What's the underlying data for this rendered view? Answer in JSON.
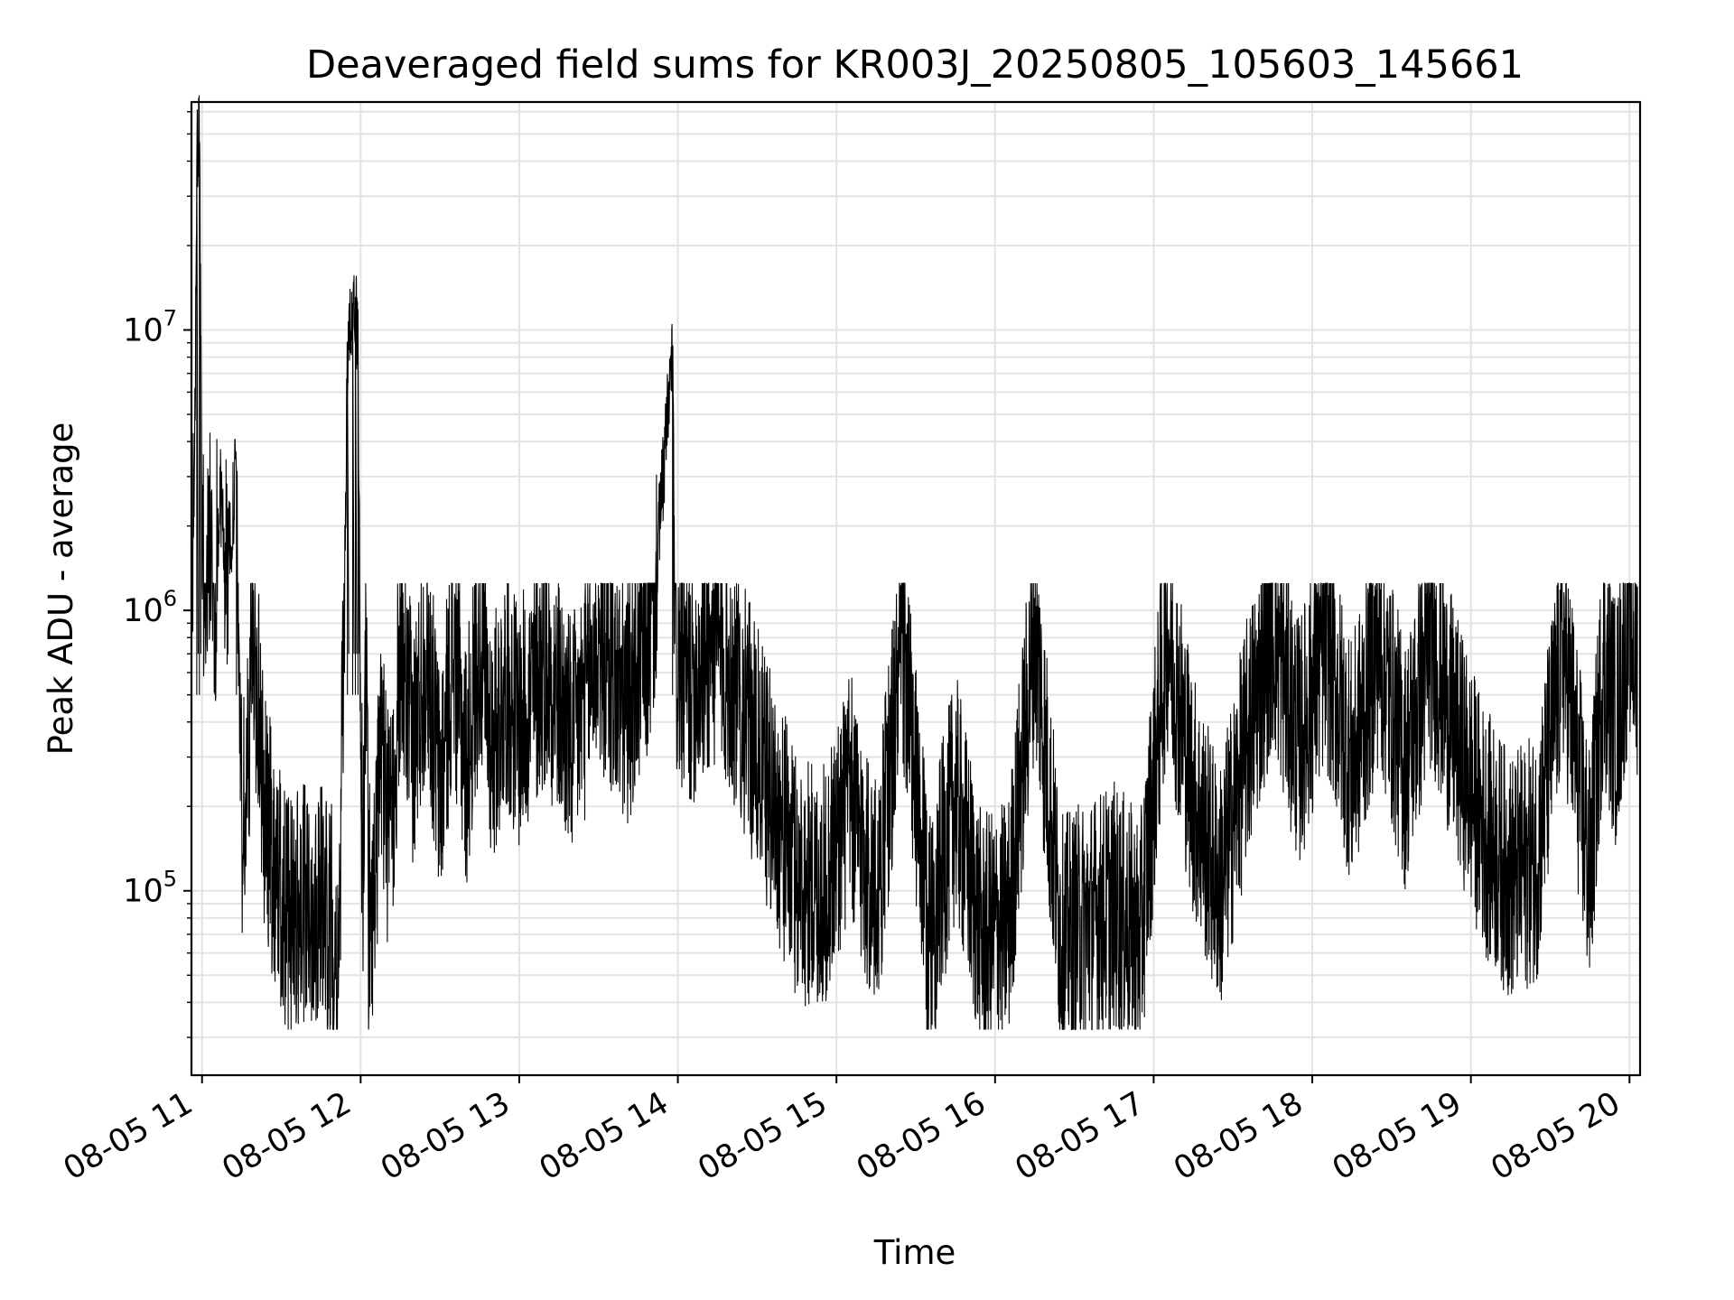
{
  "chart_data": {
    "type": "line",
    "title": "Deaveraged field sums for KR003J_20250805_105603_145661",
    "xlabel": "Time",
    "ylabel": "Peak ADU - average",
    "yscale": "log",
    "xlim": [
      "2025-08-05 10:56",
      "2025-08-05 20:04"
    ],
    "ylim": [
      22000,
      65000000
    ],
    "grid": true,
    "line_color": "#000000",
    "x_ticks": [
      {
        "label": "08-05 11",
        "value": "2025-08-05 11:00"
      },
      {
        "label": "08-05 12",
        "value": "2025-08-05 12:00"
      },
      {
        "label": "08-05 13",
        "value": "2025-08-05 13:00"
      },
      {
        "label": "08-05 14",
        "value": "2025-08-05 14:00"
      },
      {
        "label": "08-05 15",
        "value": "2025-08-05 15:00"
      },
      {
        "label": "08-05 16",
        "value": "2025-08-05 16:00"
      },
      {
        "label": "08-05 17",
        "value": "2025-08-05 17:00"
      },
      {
        "label": "08-05 18",
        "value": "2025-08-05 18:00"
      },
      {
        "label": "08-05 19",
        "value": "2025-08-05 19:00"
      },
      {
        "label": "08-05 20",
        "value": "2025-08-05 20:00"
      }
    ],
    "y_ticks": [
      {
        "base": "10",
        "exp": "5",
        "value": 100000
      },
      {
        "base": "10",
        "exp": "6",
        "value": 1000000
      },
      {
        "base": "10",
        "exp": "7",
        "value": 10000000
      }
    ],
    "series": [
      {
        "x": [
          "10:56",
          "10:57",
          "10:58",
          "10:59",
          "11:00",
          "11:01",
          "11:03",
          "11:05",
          "11:07",
          "11:09",
          "11:11",
          "11:13",
          "11:15",
          "11:17",
          "11:19",
          "11:21",
          "11:24",
          "11:27",
          "11:30",
          "11:33",
          "11:36",
          "11:40",
          "11:44",
          "11:48",
          "11:52",
          "11:55",
          "11:57",
          "11:58",
          "11:59",
          "12:00",
          "12:01",
          "12:02",
          "12:03",
          "12:05",
          "12:08",
          "12:11",
          "12:15",
          "12:20",
          "12:25",
          "12:30",
          "12:35",
          "12:40",
          "12:45",
          "12:50",
          "12:55",
          "13:00",
          "13:10",
          "13:20",
          "13:30",
          "13:40",
          "13:50",
          "13:58",
          "13:59",
          "14:05",
          "14:15",
          "14:25",
          "14:35",
          "14:45",
          "14:55",
          "15:05",
          "15:15",
          "15:25",
          "15:35",
          "15:45",
          "15:55",
          "16:05",
          "16:15",
          "16:25",
          "16:35",
          "16:45",
          "16:55",
          "17:05",
          "17:15",
          "17:25",
          "17:35",
          "17:45",
          "17:55",
          "18:05",
          "18:15",
          "18:25",
          "18:35",
          "18:45",
          "18:55",
          "19:05",
          "19:15",
          "19:25",
          "19:35",
          "19:45",
          "19:50",
          "19:55",
          "20:00",
          "20:03"
        ],
        "y": [
          900000,
          1700000,
          38000000,
          46000000,
          1600000,
          1200000,
          1500000,
          1100000,
          2500000,
          1300000,
          1800000,
          3200000,
          150000,
          200000,
          900000,
          450000,
          160000,
          120000,
          90000,
          70000,
          80000,
          75000,
          90000,
          70000,
          60000,
          7000000,
          12500000,
          11000000,
          9000000,
          300000,
          100000,
          850000,
          80000,
          90000,
          300000,
          120000,
          600000,
          300000,
          700000,
          200000,
          650000,
          250000,
          700000,
          300000,
          500000,
          350000,
          600000,
          300000,
          700000,
          400000,
          800000,
          8000000,
          600000,
          500000,
          700000,
          400000,
          200000,
          100000,
          90000,
          200000,
          80000,
          700000,
          60000,
          200000,
          60000,
          70000,
          800000,
          60000,
          70000,
          80000,
          60000,
          800000,
          200000,
          90000,
          300000,
          800000,
          300000,
          700000,
          250000,
          700000,
          250000,
          700000,
          300000,
          150000,
          100000,
          120000,
          700000,
          100000,
          600000,
          350000,
          900000,
          550000
        ]
      }
    ]
  }
}
